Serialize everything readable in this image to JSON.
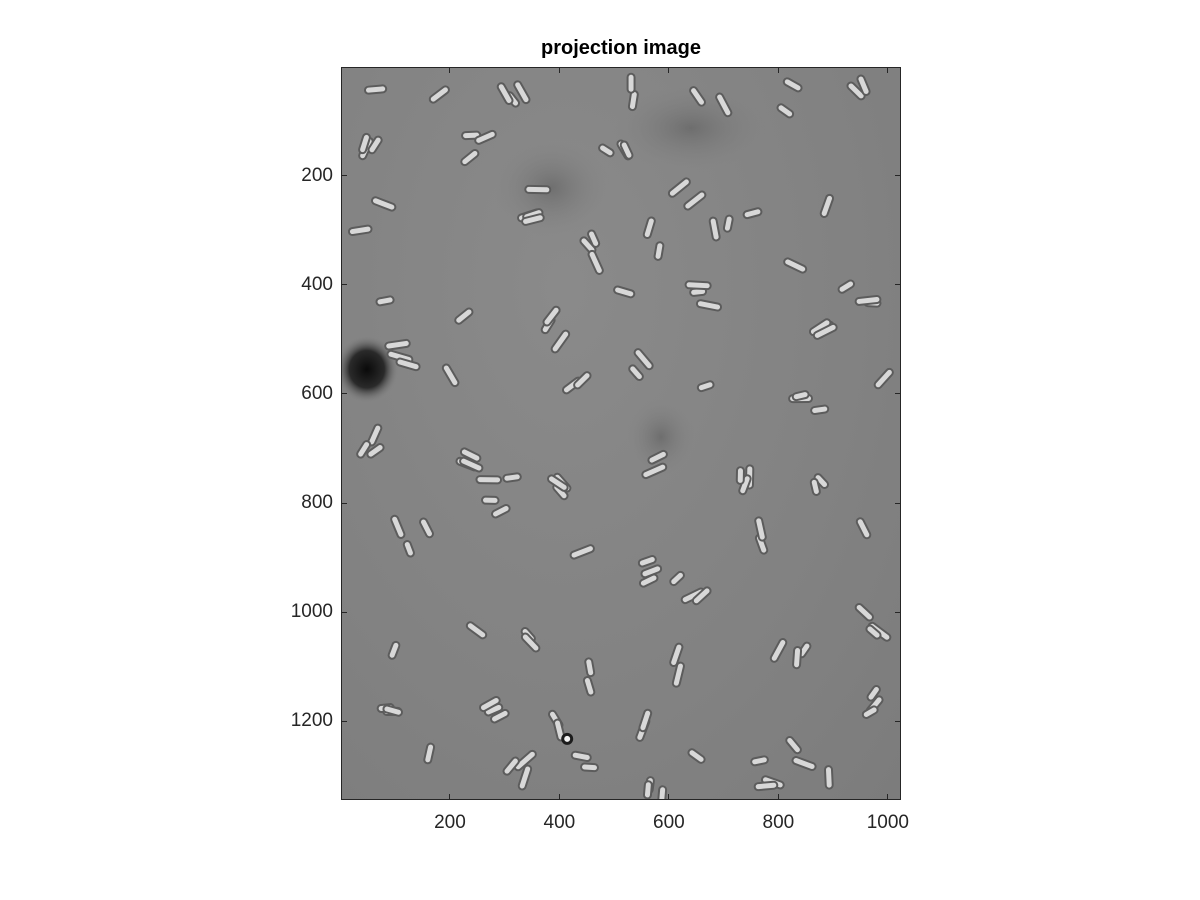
{
  "figure": {
    "title": "projection image",
    "image_description_kind": "grayscale microscopy projection of rod-shaped cells",
    "x_axis": {
      "range": [
        1,
        1024
      ],
      "ticks": [
        200,
        400,
        600,
        800,
        1000
      ]
    },
    "y_axis": {
      "range": [
        1,
        1344
      ],
      "reversed": true,
      "ticks": [
        200,
        400,
        600,
        800,
        1000,
        1200
      ]
    },
    "background_color": "#858585",
    "frame_color": "#262626"
  }
}
